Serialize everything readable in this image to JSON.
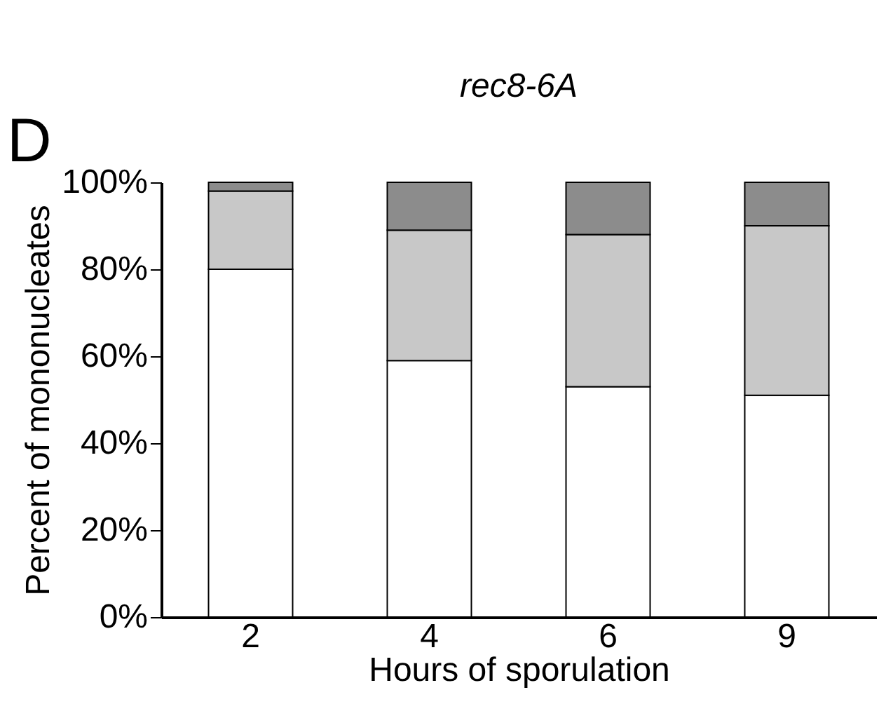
{
  "chart_data": {
    "type": "bar",
    "title": "rec8-6A",
    "xlabel": "Hours of sporulation",
    "ylabel": "Percent of mononucleates",
    "categories": [
      "2",
      "4",
      "6",
      "9"
    ],
    "stacked": true,
    "series": [
      {
        "color": "#ffffff",
        "values": [
          80,
          59,
          53,
          51
        ]
      },
      {
        "color": "#c8c8c8",
        "values": [
          18,
          30,
          35,
          39
        ]
      },
      {
        "color": "#8c8c8c",
        "values": [
          2,
          11,
          12,
          10
        ]
      }
    ],
    "ylim": [
      0,
      100
    ],
    "yticks": [
      {
        "value": 0,
        "label": "0%"
      },
      {
        "value": 20,
        "label": "20%"
      },
      {
        "value": 40,
        "label": "40%"
      },
      {
        "value": 60,
        "label": "60%"
      },
      {
        "value": 80,
        "label": "80%"
      },
      {
        "value": 100,
        "label": "100%"
      }
    ],
    "grid": false,
    "annotations": [
      "D"
    ]
  }
}
